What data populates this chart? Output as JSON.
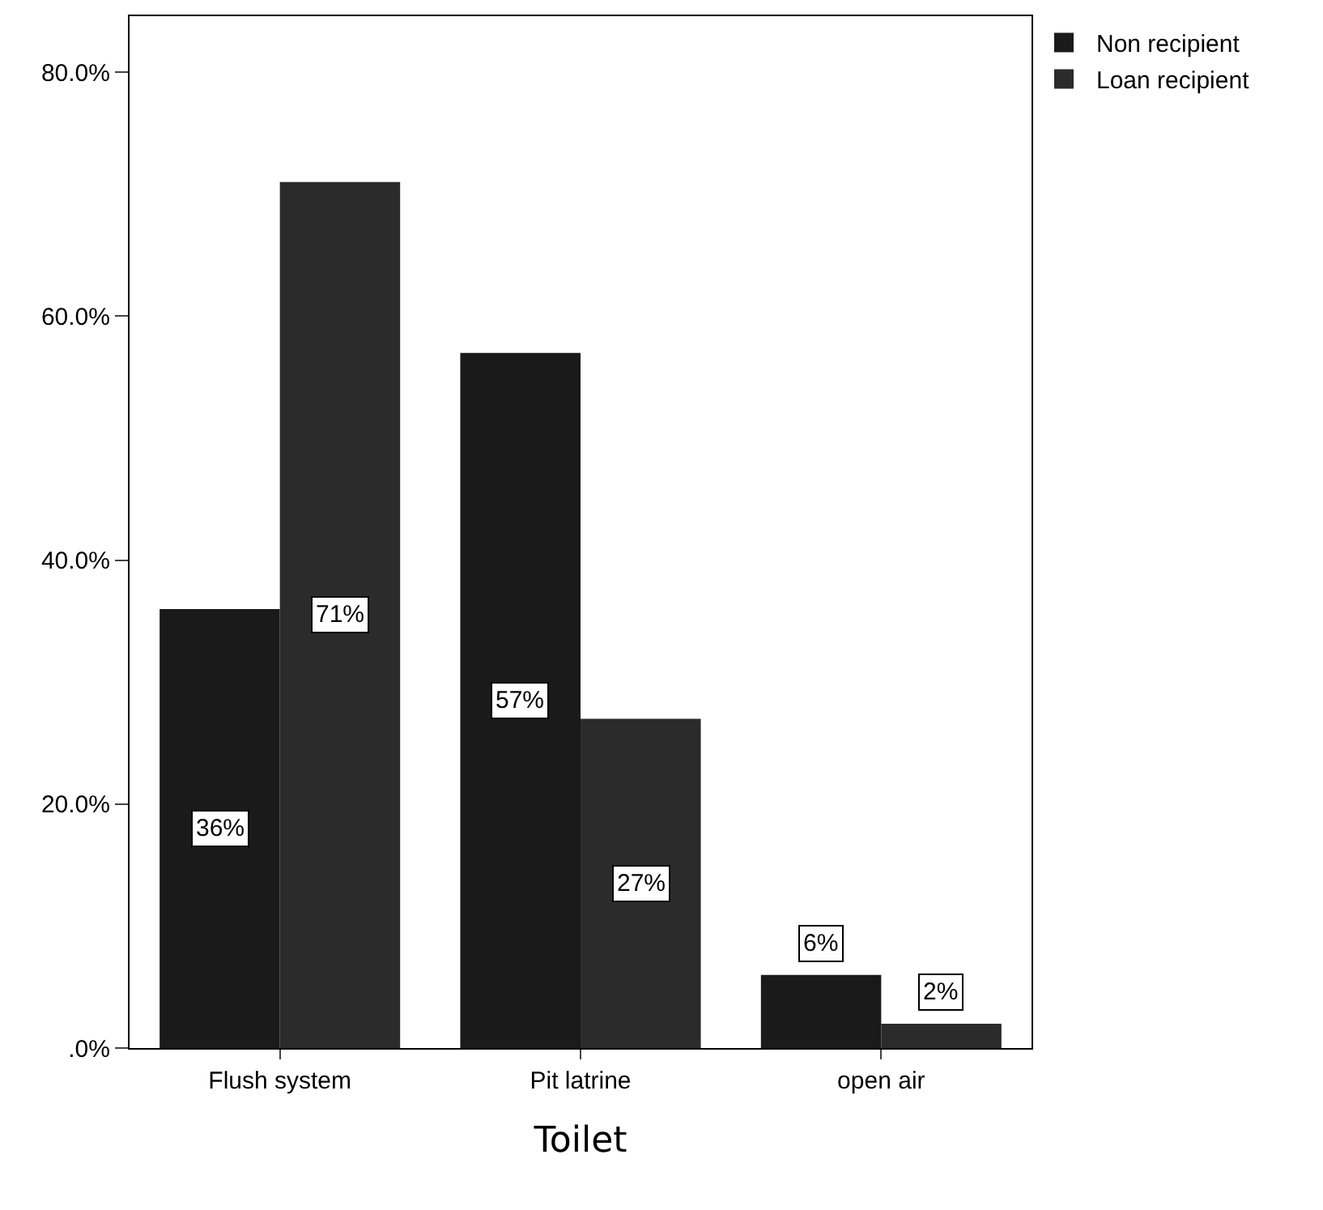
{
  "chart_data": {
    "type": "bar",
    "xlabel": "Toilet",
    "categories": [
      "Flush system",
      "Pit latrine",
      "open air"
    ],
    "series": [
      {
        "name": "Non recipient",
        "color": "#1a1a1a",
        "values": [
          36,
          57,
          6
        ],
        "value_labels": [
          "36%",
          "57%",
          "6%"
        ]
      },
      {
        "name": "Loan recipient",
        "color": "#2b2b2b",
        "values": [
          71,
          27,
          2
        ],
        "value_labels": [
          "71%",
          "27%",
          "2%"
        ]
      }
    ],
    "ylim": [
      0,
      84.6
    ],
    "yticks": [
      {
        "value": 0,
        "label": ".0%"
      },
      {
        "value": 20,
        "label": "20.0%"
      },
      {
        "value": 40,
        "label": "40.0%"
      },
      {
        "value": 60,
        "label": "60.0%"
      },
      {
        "value": 80,
        "label": "80.0%"
      }
    ],
    "grid": false,
    "legend": "top right"
  }
}
